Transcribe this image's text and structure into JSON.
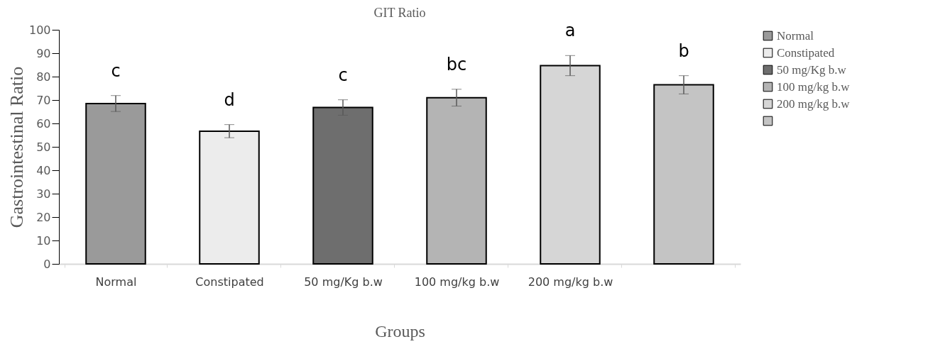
{
  "chart_data": {
    "type": "bar",
    "title": "GIT Ratio",
    "xlabel": "Groups",
    "ylabel": "Gastrointestinal Ratio",
    "categories": [
      "Normal",
      "Constipated",
      "50 mg/Kg b.w",
      "100 mg/kg b.w",
      "200 mg/kg b.w",
      null
    ],
    "series": [
      {
        "name": "Normal",
        "color": "#9a9a9a",
        "values": [
          68.5,
          null,
          null,
          null,
          null,
          null
        ],
        "errors": [
          3.4,
          null,
          null,
          null,
          null,
          null
        ],
        "value_labels": [
          "c",
          null,
          null,
          null,
          null,
          null
        ]
      },
      {
        "name": "Constipated",
        "color": "#ececec",
        "values": [
          null,
          56.7,
          null,
          null,
          null,
          null
        ],
        "errors": [
          null,
          2.8,
          null,
          null,
          null,
          null
        ],
        "value_labels": [
          null,
          "d",
          null,
          null,
          null,
          null
        ]
      },
      {
        "name": "50 mg/Kg b.w",
        "color": "#6e6e6e",
        "values": [
          null,
          null,
          66.8,
          null,
          null,
          null
        ],
        "errors": [
          null,
          null,
          3.3,
          null,
          null,
          null
        ],
        "value_labels": [
          null,
          null,
          "c",
          null,
          null,
          null
        ]
      },
      {
        "name": "100 mg/kg b.w",
        "color": "#b4b4b4",
        "values": [
          null,
          null,
          null,
          71.0,
          null,
          null
        ],
        "errors": [
          null,
          null,
          null,
          3.6,
          null,
          null
        ],
        "value_labels": [
          null,
          null,
          null,
          "bc",
          null,
          null
        ]
      },
      {
        "name": "200 mg/kg b.w",
        "color": "#d6d6d6",
        "values": [
          null,
          null,
          null,
          null,
          84.7,
          null
        ],
        "errors": [
          null,
          null,
          null,
          null,
          4.3,
          null
        ],
        "value_labels": [
          null,
          null,
          null,
          null,
          "a",
          null
        ]
      },
      {
        "color": "#c4c4c4",
        "values": [
          null,
          null,
          null,
          null,
          null,
          76.5
        ],
        "errors": [
          null,
          null,
          null,
          null,
          null,
          3.9
        ],
        "value_labels": [
          null,
          null,
          null,
          null,
          null,
          "b"
        ]
      }
    ],
    "ylim": [
      0,
      100
    ],
    "yticks": [
      0,
      10,
      20,
      30,
      40,
      50,
      60,
      70,
      80,
      90,
      100
    ],
    "grid": false,
    "legend": "top right"
  }
}
